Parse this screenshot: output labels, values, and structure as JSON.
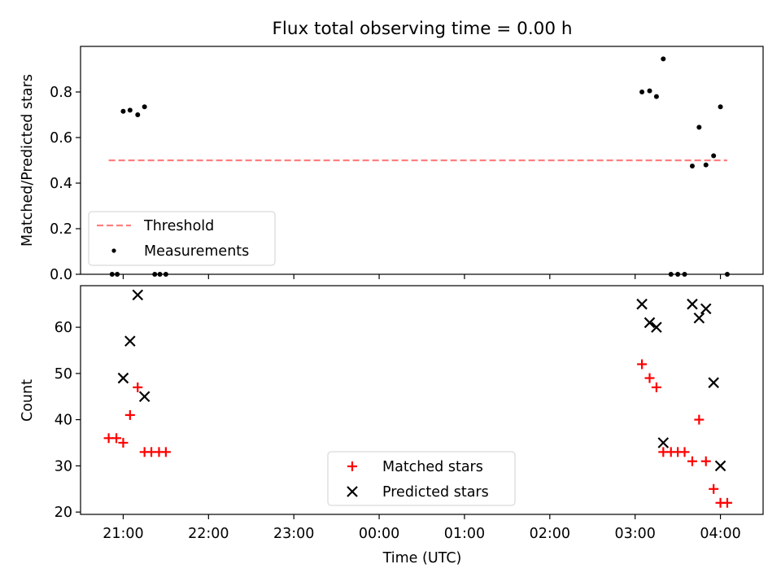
{
  "chart_data": [
    {
      "type": "scatter",
      "title": "Flux total observing time = 0.00 h",
      "ylabel": "Matched/Predicted stars",
      "xlabel": "",
      "ylim": [
        0,
        1.0
      ],
      "yticks": [
        0.0,
        0.2,
        0.4,
        0.6,
        0.8
      ],
      "ytick_labels": [
        "0.0",
        "0.2",
        "0.4",
        "0.6",
        "0.8"
      ],
      "legend_position": "lower-left",
      "threshold": {
        "name": "Threshold",
        "value": 0.5,
        "x_start": 20.83,
        "x_end": 28.08,
        "color": "#ff7f7f"
      },
      "series": [
        {
          "name": "Measurements",
          "color": "#000000",
          "x": [
            20.87,
            20.93,
            21.0,
            21.08,
            21.17,
            21.25,
            21.37,
            21.43,
            21.5,
            27.08,
            27.17,
            27.25,
            27.33,
            27.42,
            27.5,
            27.58,
            27.67,
            27.75,
            27.83,
            27.92,
            28.0,
            28.08
          ],
          "y": [
            0.0,
            0.0,
            0.715,
            0.72,
            0.7,
            0.735,
            0.0,
            0.0,
            0.0,
            0.8,
            0.805,
            0.78,
            0.945,
            0.0,
            0.0,
            0.0,
            0.475,
            0.645,
            0.48,
            0.52,
            0.735,
            0.0
          ]
        }
      ]
    },
    {
      "type": "scatter",
      "title": "",
      "ylabel": "Count",
      "xlabel": "Time (UTC)",
      "ylim": [
        19.5,
        69
      ],
      "yticks": [
        20,
        30,
        40,
        50,
        60
      ],
      "ytick_labels": [
        "20",
        "30",
        "40",
        "50",
        "60"
      ],
      "xlim": [
        20.5,
        28.5
      ],
      "xticks": [
        21,
        22,
        23,
        24,
        25,
        26,
        27,
        28
      ],
      "xtick_labels": [
        "21:00",
        "22:00",
        "23:00",
        "00:00",
        "01:00",
        "02:00",
        "03:00",
        "04:00"
      ],
      "legend_position": "lower-center",
      "series": [
        {
          "name": "Matched stars",
          "marker": "plus",
          "color": "#ff0000",
          "x": [
            20.83,
            20.92,
            21.0,
            21.08,
            21.17,
            21.25,
            21.33,
            21.42,
            21.5,
            27.08,
            27.17,
            27.25,
            27.33,
            27.42,
            27.5,
            27.58,
            27.67,
            27.75,
            27.83,
            27.92,
            28.0,
            28.08
          ],
          "y": [
            36,
            36,
            35,
            41,
            47,
            33,
            33,
            33,
            33,
            52,
            49,
            47,
            33,
            33,
            33,
            33,
            31,
            40,
            31,
            25,
            22,
            22
          ]
        },
        {
          "name": "Predicted stars",
          "marker": "x",
          "color": "#000000",
          "x": [
            21.0,
            21.08,
            21.17,
            21.25,
            27.08,
            27.17,
            27.25,
            27.33,
            27.67,
            27.75,
            27.83,
            27.92,
            28.0
          ],
          "y": [
            49,
            57,
            67,
            45,
            65,
            61,
            60,
            35,
            65,
            62,
            64,
            48,
            30
          ]
        }
      ]
    }
  ]
}
